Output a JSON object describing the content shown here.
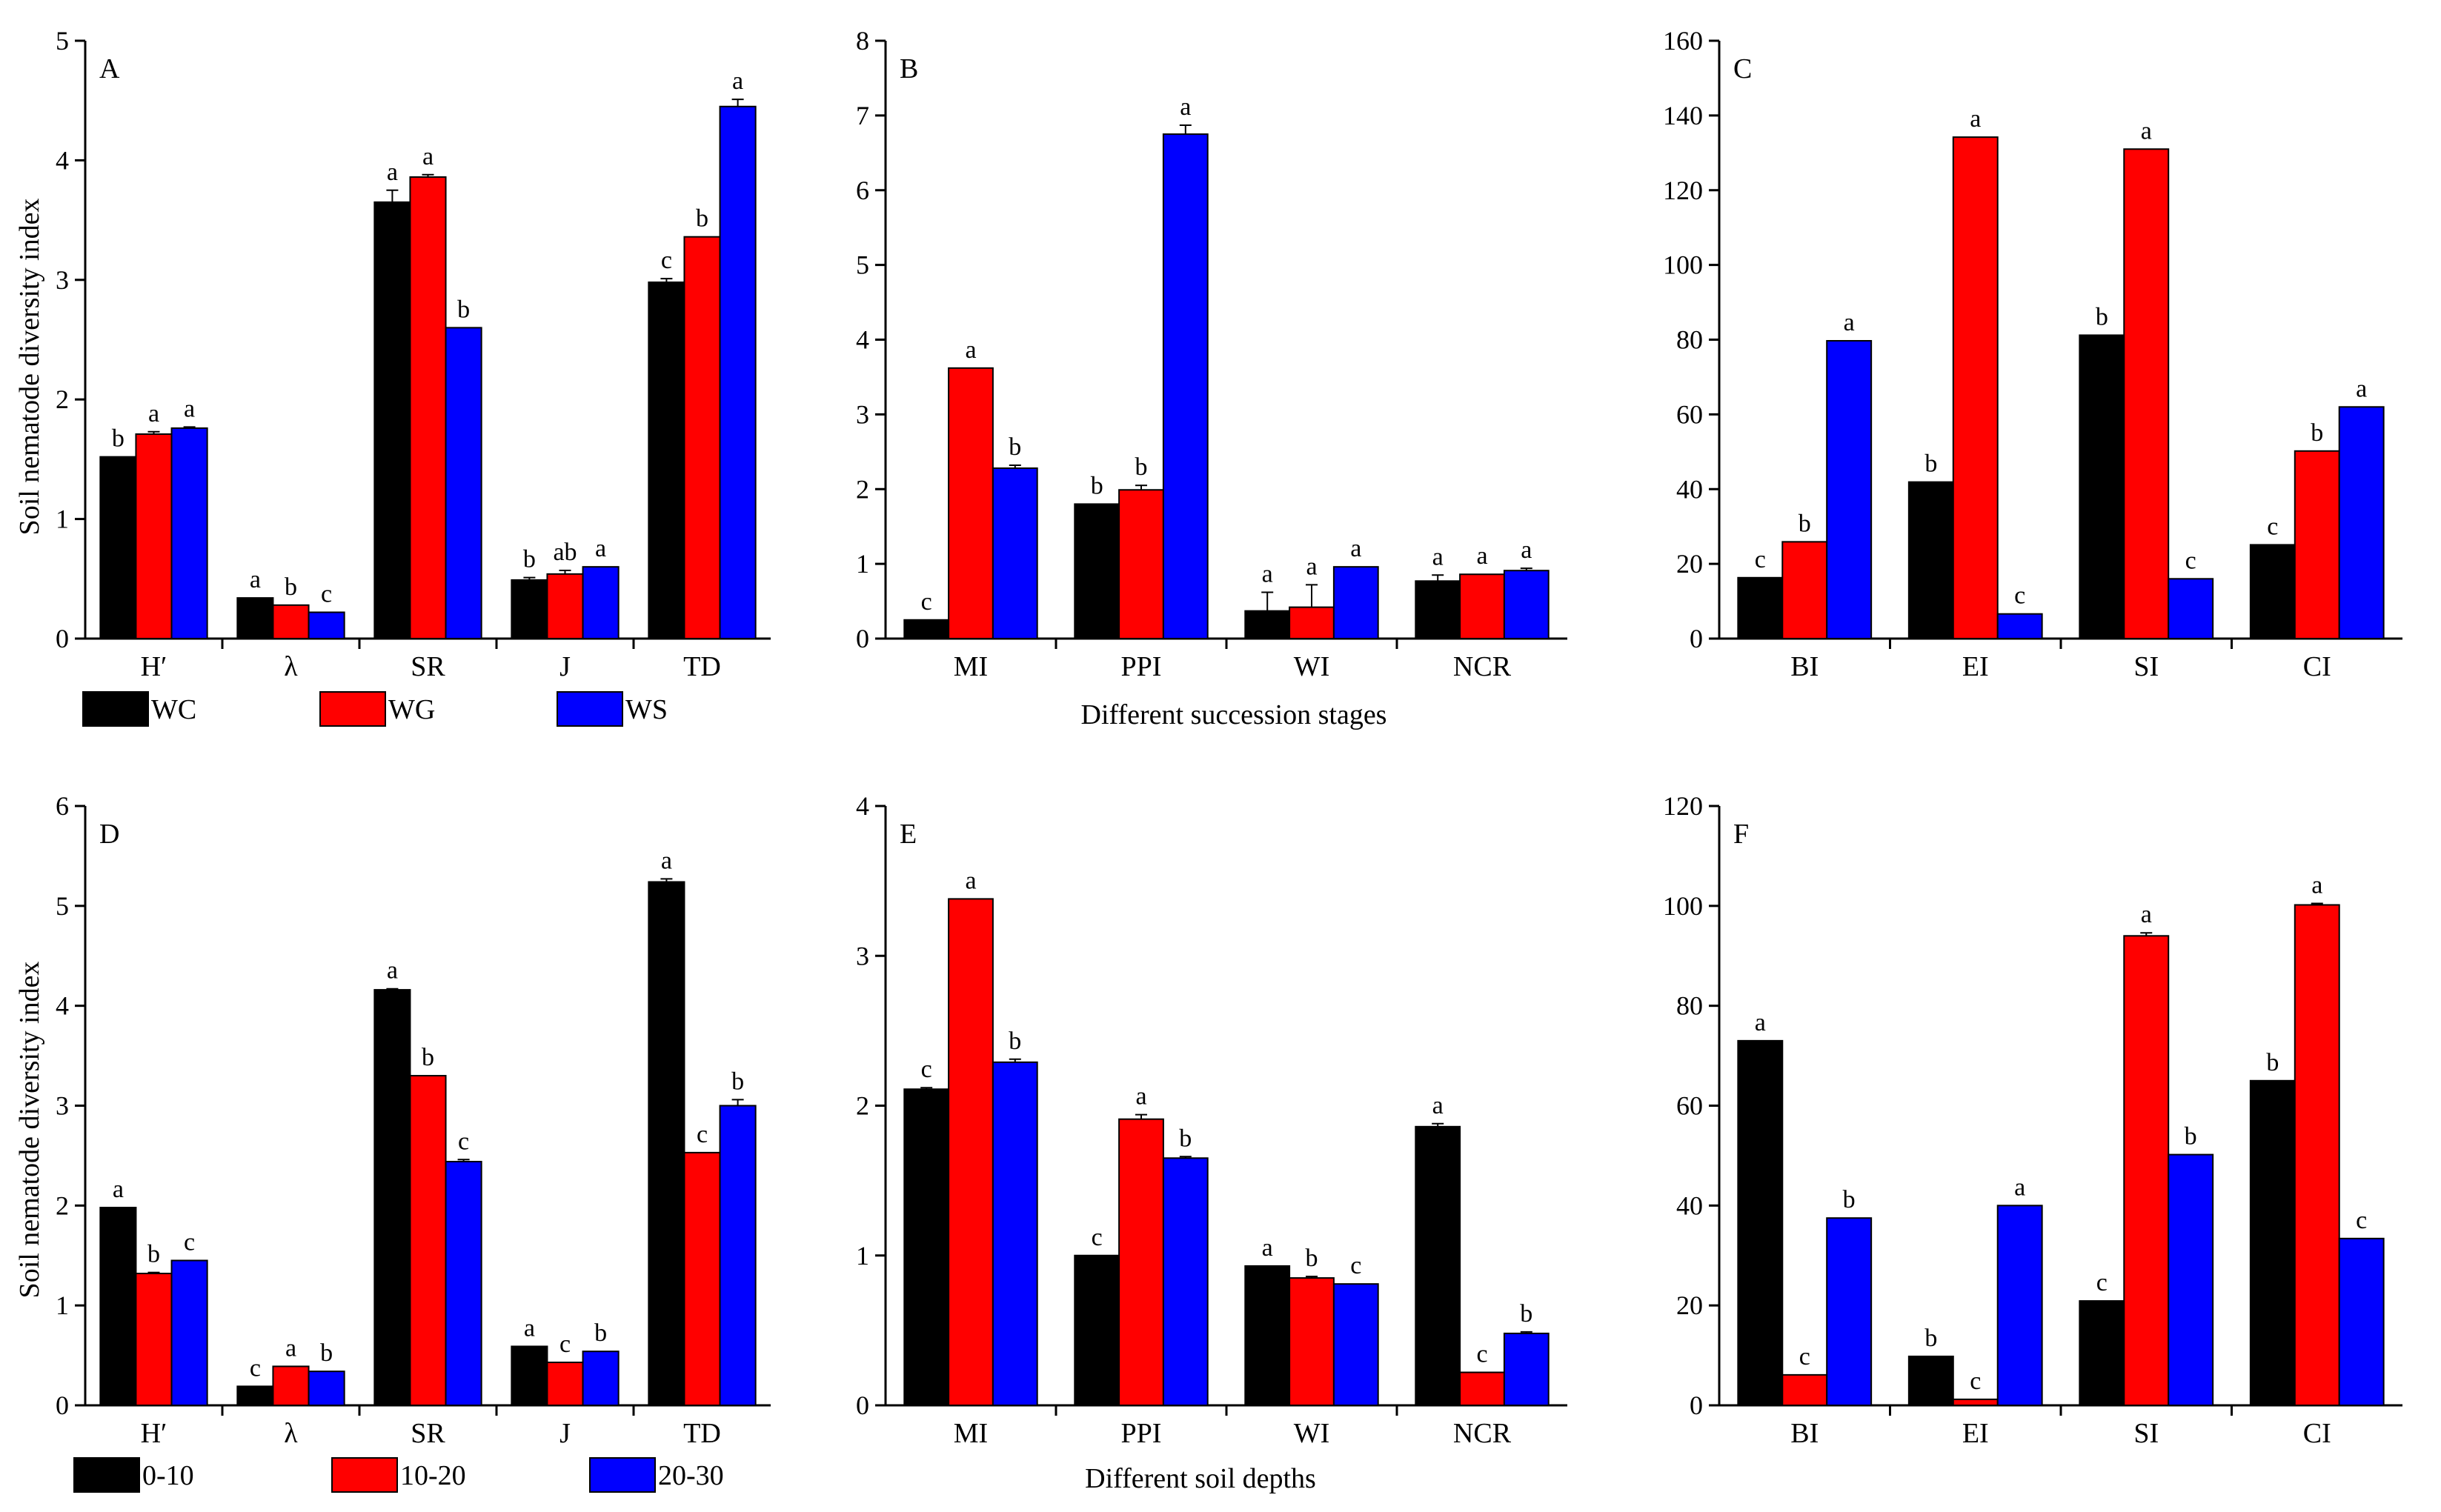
{
  "colors": {
    "series1": "#000000",
    "series2": "#ff0000",
    "series3": "#0000ff"
  },
  "shared": {
    "ylabel": "Soil nematode diversity index",
    "xlabel_top": "Different succession stages",
    "xlabel_bottom": "Different soil depths"
  },
  "legends": [
    {
      "items": [
        {
          "name": "WC"
        },
        {
          "name": "WG"
        },
        {
          "name": "WS"
        }
      ]
    },
    {
      "items": [
        {
          "name": "0-10"
        },
        {
          "name": "10-20"
        },
        {
          "name": "20-30"
        }
      ]
    }
  ],
  "chart_data": [
    {
      "panel": "A",
      "type": "bar",
      "ylim": [
        0,
        5
      ],
      "yticks": [
        0,
        1,
        2,
        3,
        4,
        5
      ],
      "categories": [
        "H′",
        "λ",
        "SR",
        "J",
        "TD"
      ],
      "series": [
        {
          "name": "WC",
          "values": [
            1.52,
            0.34,
            3.65,
            0.49,
            2.98
          ],
          "errors": [
            0,
            0,
            0.1,
            0.02,
            0.03
          ],
          "letters": [
            "b",
            "a",
            "a",
            "b",
            "c"
          ]
        },
        {
          "name": "WG",
          "values": [
            1.71,
            0.28,
            3.86,
            0.54,
            3.36
          ],
          "errors": [
            0.02,
            0,
            0.02,
            0.03,
            0
          ],
          "letters": [
            "a",
            "b",
            "a",
            "ab",
            "b"
          ]
        },
        {
          "name": "WS",
          "values": [
            1.76,
            0.22,
            2.6,
            0.6,
            4.45
          ],
          "errors": [
            0.01,
            0,
            0,
            0,
            0.06
          ],
          "letters": [
            "a",
            "c",
            "b",
            "a",
            "a"
          ]
        }
      ]
    },
    {
      "panel": "B",
      "type": "bar",
      "ylim": [
        0,
        8
      ],
      "yticks": [
        0,
        1,
        2,
        3,
        4,
        5,
        6,
        7,
        8
      ],
      "categories": [
        "MI",
        "PPI",
        "WI",
        "NCR"
      ],
      "series": [
        {
          "name": "WC",
          "values": [
            0.25,
            1.8,
            0.37,
            0.77
          ],
          "errors": [
            0,
            0,
            0.25,
            0.08
          ],
          "letters": [
            "c",
            "b",
            "a",
            "a"
          ]
        },
        {
          "name": "WG",
          "values": [
            3.62,
            1.99,
            0.42,
            0.86
          ],
          "errors": [
            0,
            0.06,
            0.3,
            0
          ],
          "letters": [
            "a",
            "b",
            "a",
            "a"
          ]
        },
        {
          "name": "WS",
          "values": [
            2.28,
            6.75,
            0.96,
            0.91
          ],
          "errors": [
            0.04,
            0.12,
            0,
            0.03
          ],
          "letters": [
            "b",
            "a",
            "a",
            "a"
          ]
        }
      ]
    },
    {
      "panel": "C",
      "type": "bar",
      "ylim": [
        0,
        160
      ],
      "yticks": [
        0,
        20,
        40,
        60,
        80,
        100,
        120,
        140,
        160
      ],
      "categories": [
        "BI",
        "EI",
        "SI",
        "CI"
      ],
      "series": [
        {
          "name": "WC",
          "values": [
            16.3,
            41.9,
            81.2,
            25.1
          ],
          "errors": [
            0,
            0,
            0,
            0
          ],
          "letters": [
            "c",
            "b",
            "b",
            "c"
          ]
        },
        {
          "name": "WG",
          "values": [
            25.9,
            134.2,
            131.0,
            50.2
          ],
          "errors": [
            0,
            0,
            0,
            0
          ],
          "letters": [
            "b",
            "a",
            "a",
            "b"
          ]
        },
        {
          "name": "WS",
          "values": [
            79.7,
            6.6,
            16.0,
            62.0
          ],
          "errors": [
            0,
            0,
            0,
            0
          ],
          "letters": [
            "a",
            "c",
            "c",
            "a"
          ]
        }
      ]
    },
    {
      "panel": "D",
      "type": "bar",
      "ylim": [
        0,
        6
      ],
      "yticks": [
        0,
        1,
        2,
        3,
        4,
        5,
        6
      ],
      "categories": [
        "H′",
        "λ",
        "SR",
        "J",
        "TD"
      ],
      "series": [
        {
          "name": "0-10",
          "values": [
            1.98,
            0.19,
            4.16,
            0.59,
            5.24
          ],
          "errors": [
            0,
            0,
            0.01,
            0,
            0.03
          ],
          "letters": [
            "a",
            "c",
            "a",
            "a",
            "a"
          ]
        },
        {
          "name": "10-20",
          "values": [
            1.32,
            0.39,
            3.3,
            0.43,
            2.53
          ],
          "errors": [
            0.01,
            0,
            0,
            0,
            0
          ],
          "letters": [
            "b",
            "a",
            "b",
            "c",
            "c"
          ]
        },
        {
          "name": "20-30",
          "values": [
            1.45,
            0.34,
            2.44,
            0.54,
            3.0
          ],
          "errors": [
            0,
            0,
            0.02,
            0,
            0.06
          ],
          "letters": [
            "c",
            "b",
            "c",
            "b",
            "b"
          ]
        }
      ]
    },
    {
      "panel": "E",
      "type": "bar",
      "ylim": [
        0,
        4
      ],
      "yticks": [
        0,
        1,
        2,
        3,
        4
      ],
      "categories": [
        "MI",
        "PPI",
        "WI",
        "NCR"
      ],
      "series": [
        {
          "name": "0-10",
          "values": [
            2.11,
            1.0,
            0.93,
            1.86
          ],
          "errors": [
            0.01,
            0,
            0,
            0.02
          ],
          "letters": [
            "c",
            "c",
            "a",
            "a"
          ]
        },
        {
          "name": "10-20",
          "values": [
            3.38,
            1.91,
            0.85,
            0.22
          ],
          "errors": [
            0,
            0.03,
            0.01,
            0
          ],
          "letters": [
            "a",
            "a",
            "b",
            "c"
          ]
        },
        {
          "name": "20-30",
          "values": [
            2.29,
            1.65,
            0.81,
            0.48
          ],
          "errors": [
            0.02,
            0.01,
            0,
            0.01
          ],
          "letters": [
            "b",
            "b",
            "c",
            "b"
          ]
        }
      ]
    },
    {
      "panel": "F",
      "type": "bar",
      "ylim": [
        0,
        120
      ],
      "yticks": [
        0,
        20,
        40,
        60,
        80,
        100,
        120
      ],
      "categories": [
        "BI",
        "EI",
        "SI",
        "CI"
      ],
      "series": [
        {
          "name": "0-10",
          "values": [
            73.0,
            9.8,
            20.9,
            65.0
          ],
          "errors": [
            0,
            0,
            0,
            0
          ],
          "letters": [
            "a",
            "b",
            "c",
            "b"
          ]
        },
        {
          "name": "10-20",
          "values": [
            6.1,
            1.2,
            94.0,
            100.2
          ],
          "errors": [
            0,
            0,
            0.6,
            0.3
          ],
          "letters": [
            "c",
            "c",
            "a",
            "a"
          ]
        },
        {
          "name": "20-30",
          "values": [
            37.5,
            40.0,
            50.2,
            33.4
          ],
          "errors": [
            0,
            0,
            0,
            0
          ],
          "letters": [
            "b",
            "a",
            "b",
            "c"
          ]
        }
      ]
    }
  ]
}
